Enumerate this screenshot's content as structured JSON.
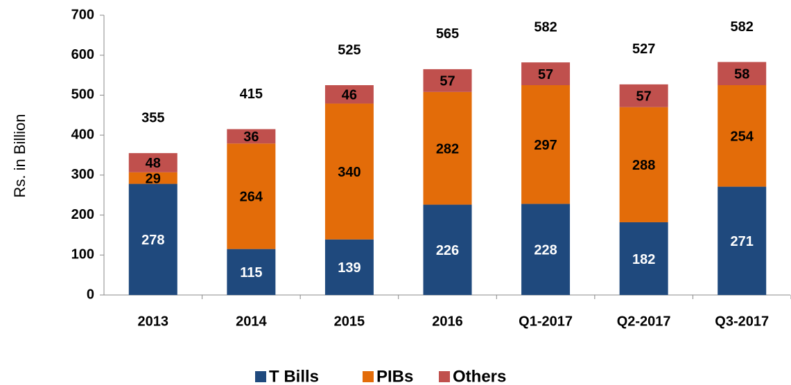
{
  "chart_data": {
    "type": "stacked_bar",
    "y_label": "Rs. in Billion",
    "categories": [
      "2013",
      "2014",
      "2015",
      "2016",
      "Q1-2017",
      "Q2-2017",
      "Q3-2017"
    ],
    "series": [
      {
        "name": "T Bills",
        "color": "#1f497d",
        "values": [
          278,
          115,
          139,
          226,
          228,
          182,
          271
        ]
      },
      {
        "name": "PIBs",
        "color": "#e36c09",
        "values": [
          29,
          264,
          340,
          282,
          297,
          288,
          254
        ]
      },
      {
        "name": "Others",
        "color": "#c0504d",
        "values": [
          48,
          36,
          46,
          57,
          57,
          57,
          58
        ]
      }
    ],
    "totals": [
      355,
      415,
      525,
      565,
      582,
      527,
      582
    ],
    "ylim": [
      0,
      700
    ],
    "yticks": [
      0,
      100,
      200,
      300,
      400,
      500,
      600,
      700
    ],
    "legend": "bottom"
  }
}
